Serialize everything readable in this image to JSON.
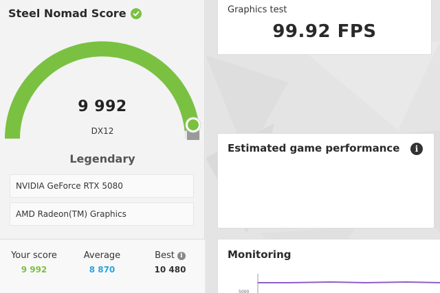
{
  "left_panel": {
    "title": "Steel Nomad Score",
    "score": "9 992",
    "api": "DX12",
    "rank": "Legendary",
    "gauge_fraction": 0.97,
    "hardware": [
      "NVIDIA GeForce RTX 5080",
      "AMD Radeon(TM) Graphics"
    ]
  },
  "stats": {
    "your_score": {
      "label": "Your score",
      "value": "9 992",
      "color": "#7ac142"
    },
    "average": {
      "label": "Average",
      "value": "8 870",
      "color": "#2ba3e0"
    },
    "best": {
      "label": "Best",
      "value": "10 480",
      "color": "#333333"
    }
  },
  "graphics_test": {
    "label": "Graphics test",
    "value": "99.92 FPS"
  },
  "estimated": {
    "title": "Estimated game performance"
  },
  "monitoring": {
    "title": "Monitoring",
    "tick_label": "5000"
  },
  "colors": {
    "accent_green": "#7ac142",
    "average_blue": "#2ba3e0",
    "monitor_line": "#8e5cc8"
  },
  "icons": {
    "check": "check-circle-icon",
    "info": "info-icon"
  }
}
